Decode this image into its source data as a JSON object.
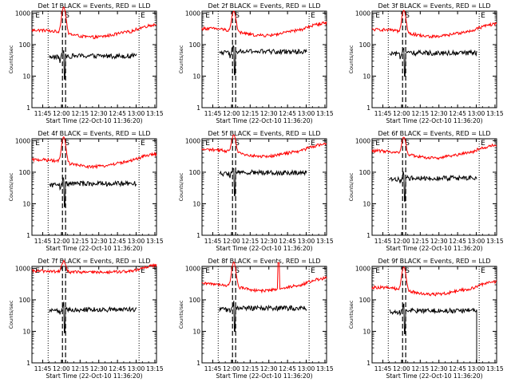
{
  "chart_data": [
    {
      "type": "line",
      "title": "Det 1f BLACK = Events, RED = LLD",
      "xlabel": "Start Time (22-Oct-10 11:36:20)",
      "ylabel": "Counts/sec",
      "x_ticks": [
        "11:45",
        "12:00",
        "12:15",
        "12:30",
        "12:45",
        "13:00",
        "13:15"
      ],
      "y_ticks": [
        "1",
        "10",
        "100",
        "1000"
      ],
      "yscale": "log",
      "ylim": [
        1,
        1000
      ],
      "markers": [
        "E",
        "S",
        "E"
      ],
      "series": []
    },
    {
      "type": "line",
      "title": "Det 2f BLACK = Events, RED = LLD",
      "xlabel": "Start Time (22-Oct-10 11:36:20)",
      "ylabel": "Counts/sec",
      "x_ticks": [
        "11:45",
        "12:00",
        "12:15",
        "12:30",
        "12:45",
        "13:00",
        "13:15"
      ],
      "y_ticks": [
        "1",
        "10",
        "100",
        "1000"
      ],
      "yscale": "log",
      "ylim": [
        1,
        1000
      ],
      "markers": [
        "E",
        "S",
        "E"
      ],
      "series": []
    },
    {
      "type": "line",
      "title": "Det 3f BLACK = Events, RED = LLD",
      "xlabel": "Start Time (22-Oct-10 11:36:20)",
      "ylabel": "Counts/sec",
      "x_ticks": [
        "11:45",
        "12:00",
        "12:15",
        "12:30",
        "12:45",
        "13:00",
        "13:15"
      ],
      "y_ticks": [
        "1",
        "10",
        "100",
        "1000"
      ],
      "yscale": "log",
      "ylim": [
        1,
        1000
      ],
      "markers": [
        "E",
        "S",
        "E"
      ],
      "series": []
    },
    {
      "type": "line",
      "title": "Det 4f BLACK = Events, RED = LLD",
      "xlabel": "Start Time (22-Oct-10 11:36:20)",
      "ylabel": "Counts/sec",
      "x_ticks": [
        "11:45",
        "12:00",
        "12:15",
        "12:30",
        "12:45",
        "13:00",
        "13:15"
      ],
      "y_ticks": [
        "1",
        "10",
        "100",
        "1000"
      ],
      "yscale": "log",
      "ylim": [
        1,
        1000
      ],
      "markers": [
        "E",
        "S",
        "E"
      ],
      "series": []
    },
    {
      "type": "line",
      "title": "Det 5f BLACK = Events, RED = LLD",
      "xlabel": "Start Time (22-Oct-10 11:36:20)",
      "ylabel": "Counts/sec",
      "x_ticks": [
        "11:45",
        "12:00",
        "12:15",
        "12:30",
        "12:45",
        "13:00",
        "13:15"
      ],
      "y_ticks": [
        "1",
        "10",
        "100",
        "1000"
      ],
      "yscale": "log",
      "ylim": [
        1,
        1000
      ],
      "markers": [
        "E",
        "S",
        "E"
      ],
      "series": []
    },
    {
      "type": "line",
      "title": "Det 6f BLACK = Events, RED = LLD",
      "xlabel": "Start Time (22-Oct-10 11:36:20)",
      "ylabel": "Counts/sec",
      "x_ticks": [
        "11:45",
        "12:00",
        "12:15",
        "12:30",
        "12:45",
        "13:00",
        "13:15"
      ],
      "y_ticks": [
        "1",
        "10",
        "100",
        "1000"
      ],
      "yscale": "log",
      "ylim": [
        1,
        1000
      ],
      "markers": [
        "E",
        "S",
        "E"
      ],
      "series": []
    },
    {
      "type": "line",
      "title": "Det 7f BLACK = Events, RED = LLD",
      "xlabel": "Start Time (22-Oct-10 11:36:20)",
      "ylabel": "Counts/sec",
      "x_ticks": [
        "11:45",
        "12:00",
        "12:15",
        "12:30",
        "12:45",
        "13:00",
        "13:15"
      ],
      "y_ticks": [
        "1",
        "10",
        "100",
        "1000"
      ],
      "yscale": "log",
      "ylim": [
        1,
        1000
      ],
      "markers": [
        "E",
        "S",
        "E"
      ],
      "series": []
    },
    {
      "type": "line",
      "title": "Det 8f BLACK = Events, RED = LLD",
      "xlabel": "Start Time (22-Oct-10 11:36:20)",
      "ylabel": "Counts/sec",
      "x_ticks": [
        "11:45",
        "12:00",
        "12:15",
        "12:30",
        "12:45",
        "13:00",
        "13:15"
      ],
      "y_ticks": [
        "1",
        "10",
        "100",
        "1000"
      ],
      "yscale": "log",
      "ylim": [
        1,
        1000
      ],
      "markers": [
        "E",
        "S",
        "E"
      ],
      "series": []
    },
    {
      "type": "line",
      "title": "Det 9f BLACK = Events, RED = LLD",
      "xlabel": "Start Time (22-Oct-10 11:36:20)",
      "ylabel": "Counts/sec",
      "x_ticks": [
        "11:45",
        "12:00",
        "12:15",
        "12:30",
        "12:45",
        "13:00",
        "13:15"
      ],
      "y_ticks": [
        "1",
        "10",
        "100",
        "1000"
      ],
      "yscale": "log",
      "ylim": [
        1,
        1000
      ],
      "markers": [
        "E",
        "S",
        "E"
      ],
      "series": []
    }
  ],
  "colors": {
    "events": "#000000",
    "lld": "#ff0000",
    "axis": "#000000",
    "background": "#ffffff"
  }
}
